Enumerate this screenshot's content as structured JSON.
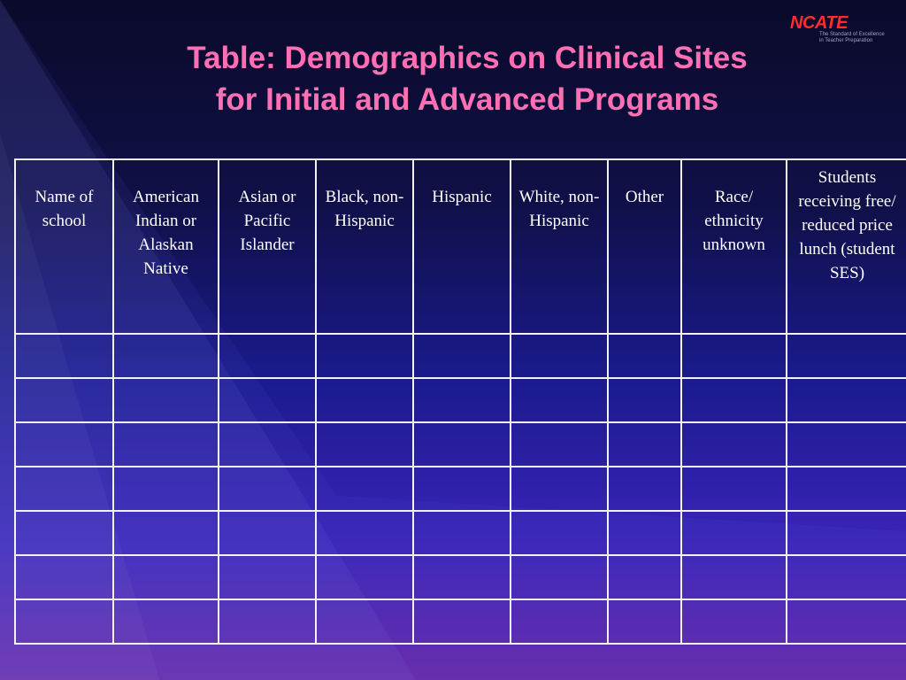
{
  "logo": {
    "word": "NCATE",
    "tagline_1": "The Standard of Excellence",
    "tagline_2": "in Teacher Preparation"
  },
  "title": {
    "line1": "Table: Demographics on Clinical Sites",
    "line2": "for Initial and Advanced Programs"
  },
  "table": {
    "headers": [
      "Name of school",
      "American Indian or Alaskan Native",
      "Asian or Pacific Islander",
      "Black, non-Hispanic",
      "Hispanic",
      "White, non-Hispanic",
      "Other",
      "Race/ ethnicity unknown",
      "Students receiving free/ reduced price lunch (student SES)"
    ],
    "rows": [
      [
        "",
        "",
        "",
        "",
        "",
        "",
        "",
        "",
        ""
      ],
      [
        "",
        "",
        "",
        "",
        "",
        "",
        "",
        "",
        ""
      ],
      [
        "",
        "",
        "",
        "",
        "",
        "",
        "",
        "",
        ""
      ],
      [
        "",
        "",
        "",
        "",
        "",
        "",
        "",
        "",
        ""
      ],
      [
        "",
        "",
        "",
        "",
        "",
        "",
        "",
        "",
        ""
      ],
      [
        "",
        "",
        "",
        "",
        "",
        "",
        "",
        "",
        ""
      ],
      [
        "",
        "",
        "",
        "",
        "",
        "",
        "",
        "",
        ""
      ]
    ]
  },
  "colors": {
    "title": "#ff6fb4",
    "logo": "#ff2d2d",
    "grid": "#f2f2f2",
    "text": "#ffffff"
  }
}
